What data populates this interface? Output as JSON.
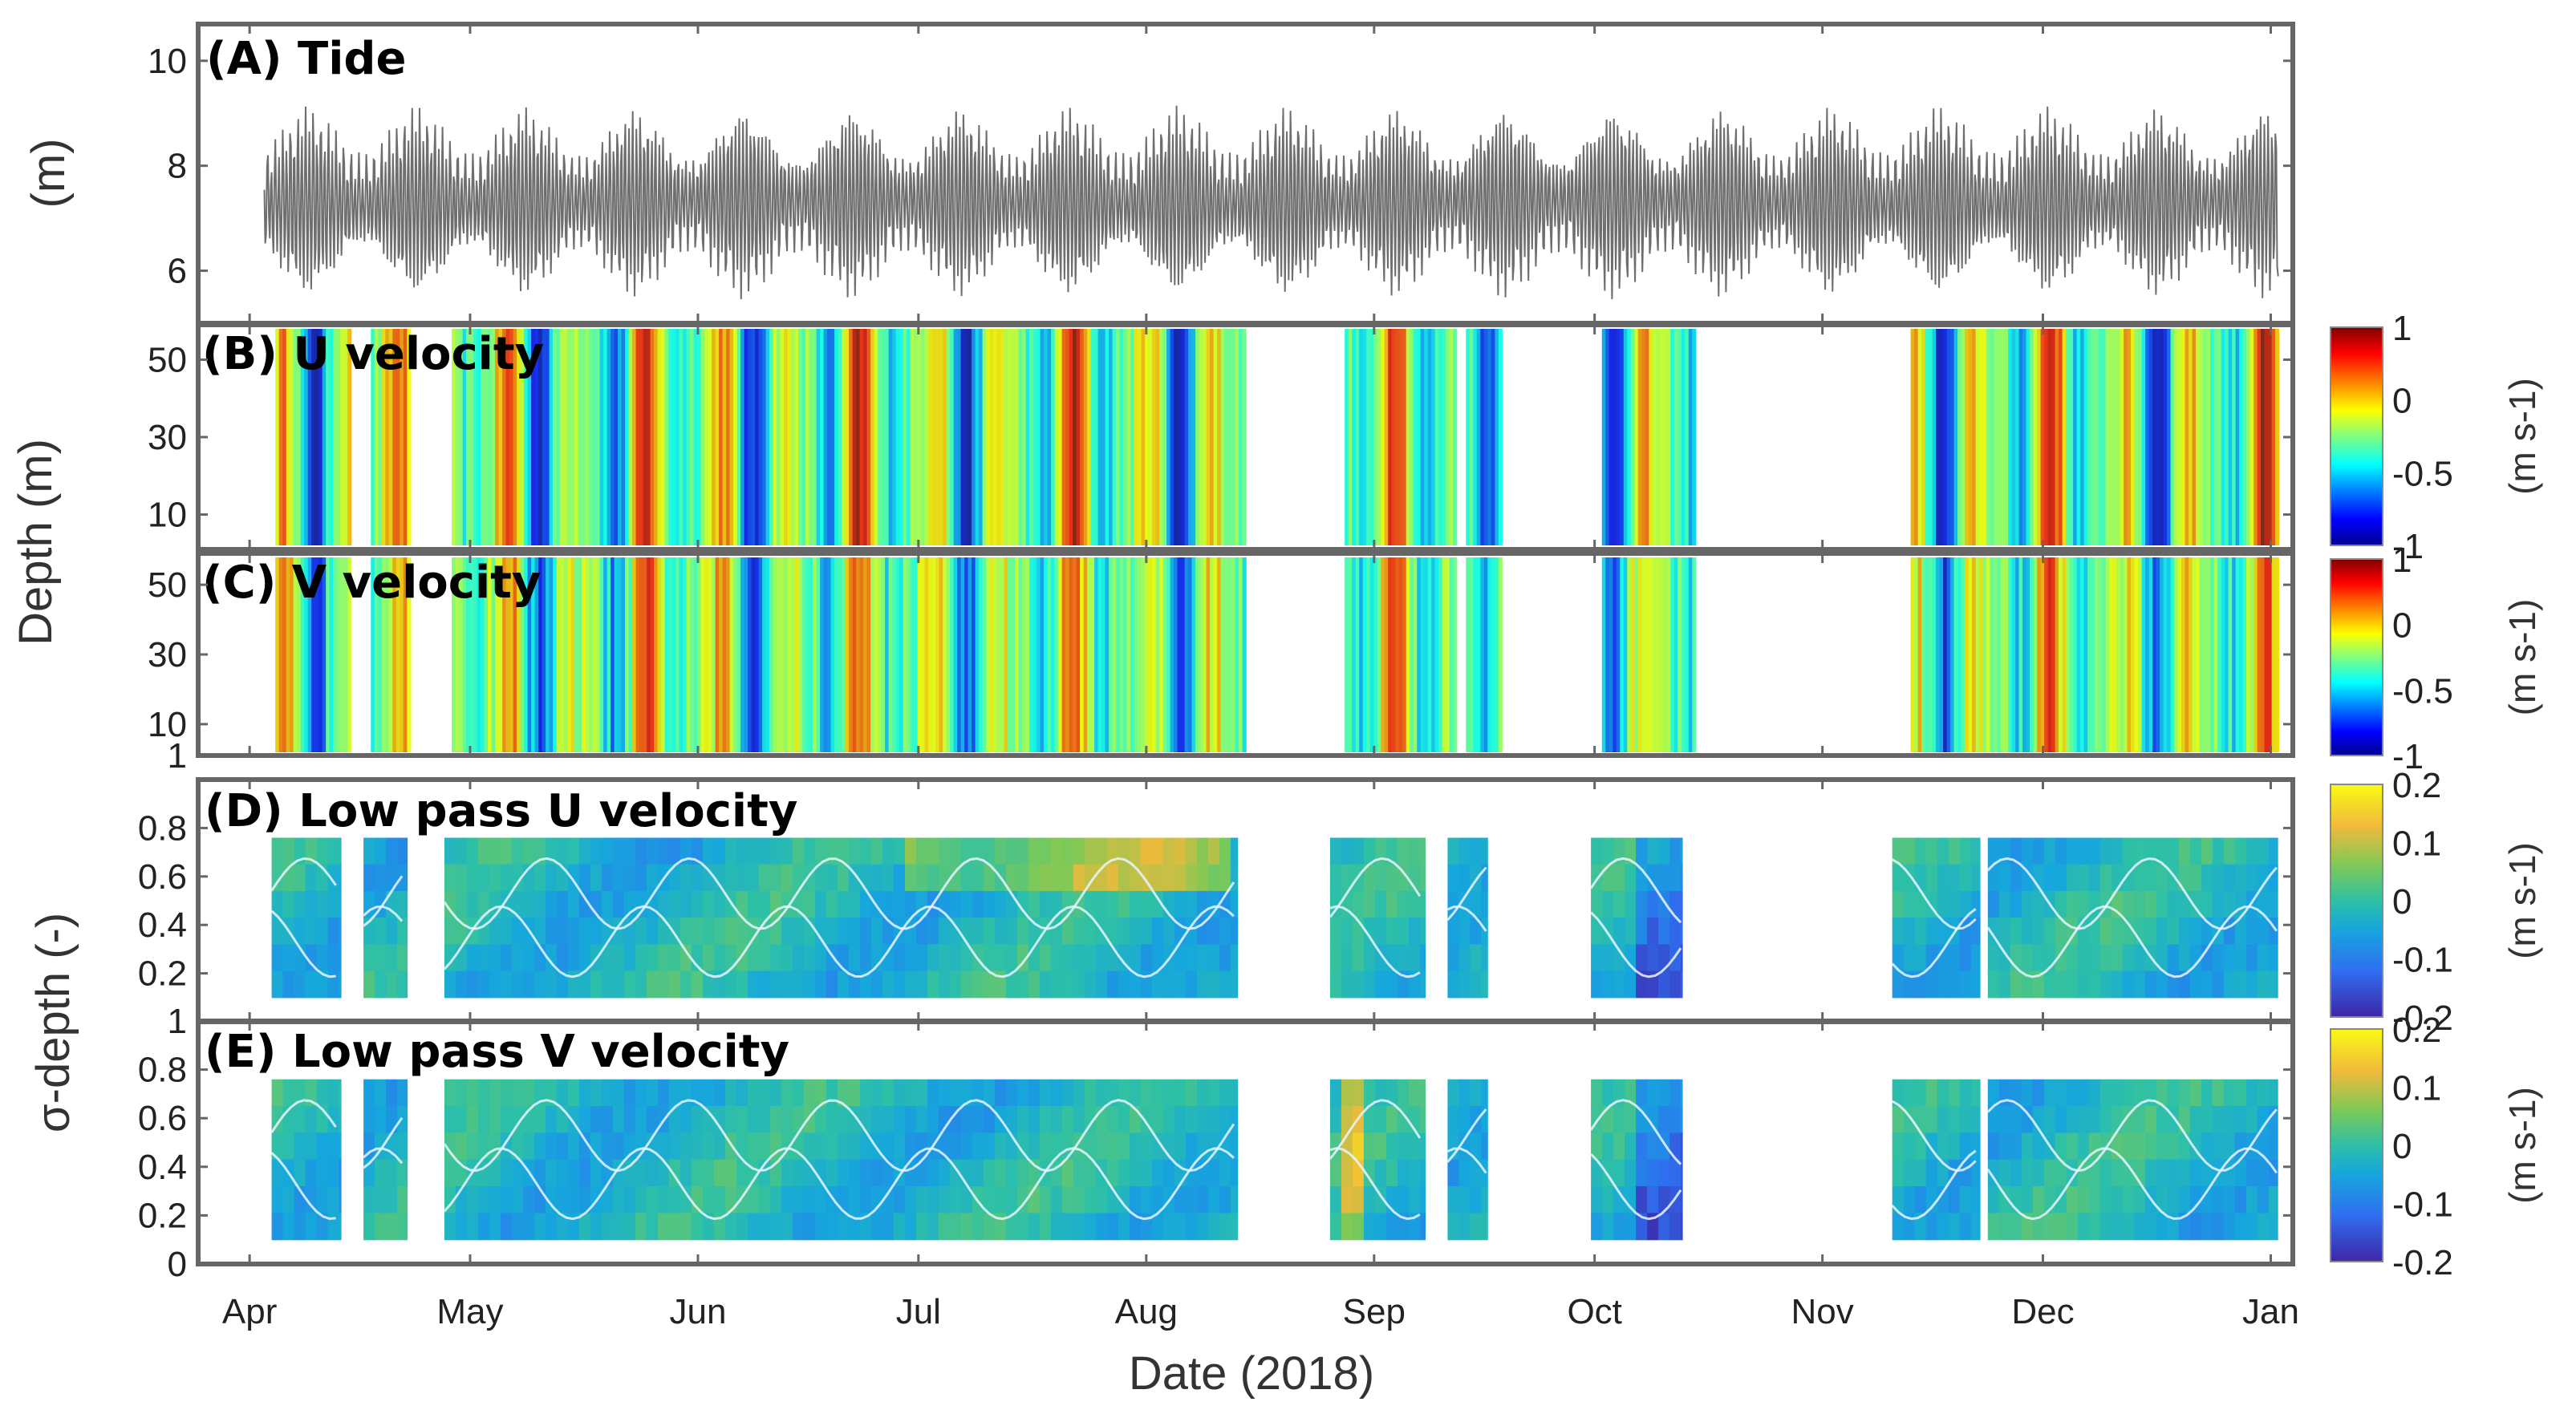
{
  "figure": {
    "xlabel": "Date (2018)",
    "months": [
      "Apr",
      "May",
      "Jun",
      "Jul",
      "Aug",
      "Sep",
      "Oct",
      "Nov",
      "Dec",
      "Jan"
    ],
    "shared_ylabel": "Depth (m)",
    "sigma_ylabel": "σ-depth (-)"
  },
  "colors": {
    "tide_line": "#6e6e6e",
    "velocity_colormap": [
      "#00008f",
      "#0000ff",
      "#0080ff",
      "#00ffff",
      "#80ff80",
      "#ffff00",
      "#ff8000",
      "#ff0000",
      "#800000"
    ],
    "lowpass_colormap": [
      "#3e26a8",
      "#2f6ff0",
      "#16a7dc",
      "#2ec0a6",
      "#7cc957",
      "#f0ba3a",
      "#f9fb15"
    ],
    "contour": "#e8f6ff",
    "frame": "#666666"
  },
  "chart_data": [
    {
      "type": "line",
      "panel": "A",
      "title": "(A) Tide",
      "ylabel": "(m)",
      "ylim": [
        5,
        10.7
      ],
      "yticks": [
        6,
        8,
        10
      ],
      "x_range_days": [
        0,
        285
      ],
      "data_start_day": 9,
      "data_end_day": 283,
      "mean_level": 7.3,
      "spring_amplitude": 1.6,
      "neap_amplitude": 0.7,
      "spring_neap_period_days": 14.8,
      "series": [
        {
          "name": "Tide",
          "description_units": "m"
        }
      ]
    },
    {
      "type": "heatmap",
      "panel": "B",
      "title": "(B) U velocity",
      "ylabel": "Depth (m)",
      "yticks": [
        10,
        30,
        50
      ],
      "ylim": [
        1,
        59
      ],
      "colorbar": {
        "ticks": [
          1,
          0,
          -0.5,
          -1
        ],
        "unit": "(m s-1)",
        "range": [
          -1,
          1
        ]
      },
      "coverage_days": [
        [
          10.5,
          20.5
        ],
        [
          23.5,
          28.5
        ],
        [
          34.5,
          142.5
        ],
        [
          156,
          171
        ],
        [
          172.5,
          177
        ],
        [
          191,
          203.5
        ],
        [
          233,
          283
        ]
      ]
    },
    {
      "type": "heatmap",
      "panel": "C",
      "title": "(C) V velocity",
      "ylabel": "Depth (m)",
      "yticks": [
        1,
        10,
        30,
        50
      ],
      "ylim": [
        1,
        59
      ],
      "colorbar": {
        "ticks": [
          1,
          0,
          -0.5,
          -1
        ],
        "unit": "(m s-1)",
        "range": [
          -1,
          1
        ]
      },
      "coverage_days": [
        [
          10.5,
          20.5
        ],
        [
          23.5,
          28.5
        ],
        [
          34.5,
          142.5
        ],
        [
          156,
          171
        ],
        [
          172.5,
          177
        ],
        [
          191,
          203.5
        ],
        [
          233,
          283
        ]
      ]
    },
    {
      "type": "heatmap",
      "panel": "D",
      "title": "(D) Low pass U velocity",
      "ylabel": "σ-depth (-)",
      "yticks": [
        0.2,
        0.4,
        0.6,
        0.8
      ],
      "ylim": [
        0,
        1
      ],
      "colorbar": {
        "ticks": [
          0.2,
          0.1,
          0,
          -0.1,
          -0.2
        ],
        "unit": "(m s-1)",
        "range": [
          -0.2,
          0.2
        ]
      },
      "coverage_days": [
        [
          10,
          19.5
        ],
        [
          22.5,
          28.5
        ],
        [
          33.5,
          141.5
        ],
        [
          154,
          167
        ],
        [
          170,
          175.5
        ],
        [
          189.5,
          202
        ],
        [
          230.5,
          242.5
        ],
        [
          243.5,
          283
        ]
      ],
      "sigma_range": [
        0.1,
        0.76
      ]
    },
    {
      "type": "heatmap",
      "panel": "E",
      "title": "(E) Low pass V velocity",
      "ylabel": "σ-depth (-)",
      "yticks": [
        0,
        0.2,
        0.4,
        0.6,
        0.8,
        1
      ],
      "ylim": [
        0,
        1
      ],
      "colorbar": {
        "ticks": [
          0.2,
          0.1,
          0,
          -0.1,
          -0.2
        ],
        "unit": "(m s-1)",
        "range": [
          -0.2,
          0.2
        ]
      },
      "coverage_days": [
        [
          10,
          19.5
        ],
        [
          22.5,
          28.5
        ],
        [
          33.5,
          141.5
        ],
        [
          154,
          167
        ],
        [
          170,
          175.5
        ],
        [
          189.5,
          202
        ],
        [
          230.5,
          242.5
        ],
        [
          243.5,
          283
        ]
      ],
      "sigma_range": [
        0.1,
        0.76
      ]
    }
  ]
}
